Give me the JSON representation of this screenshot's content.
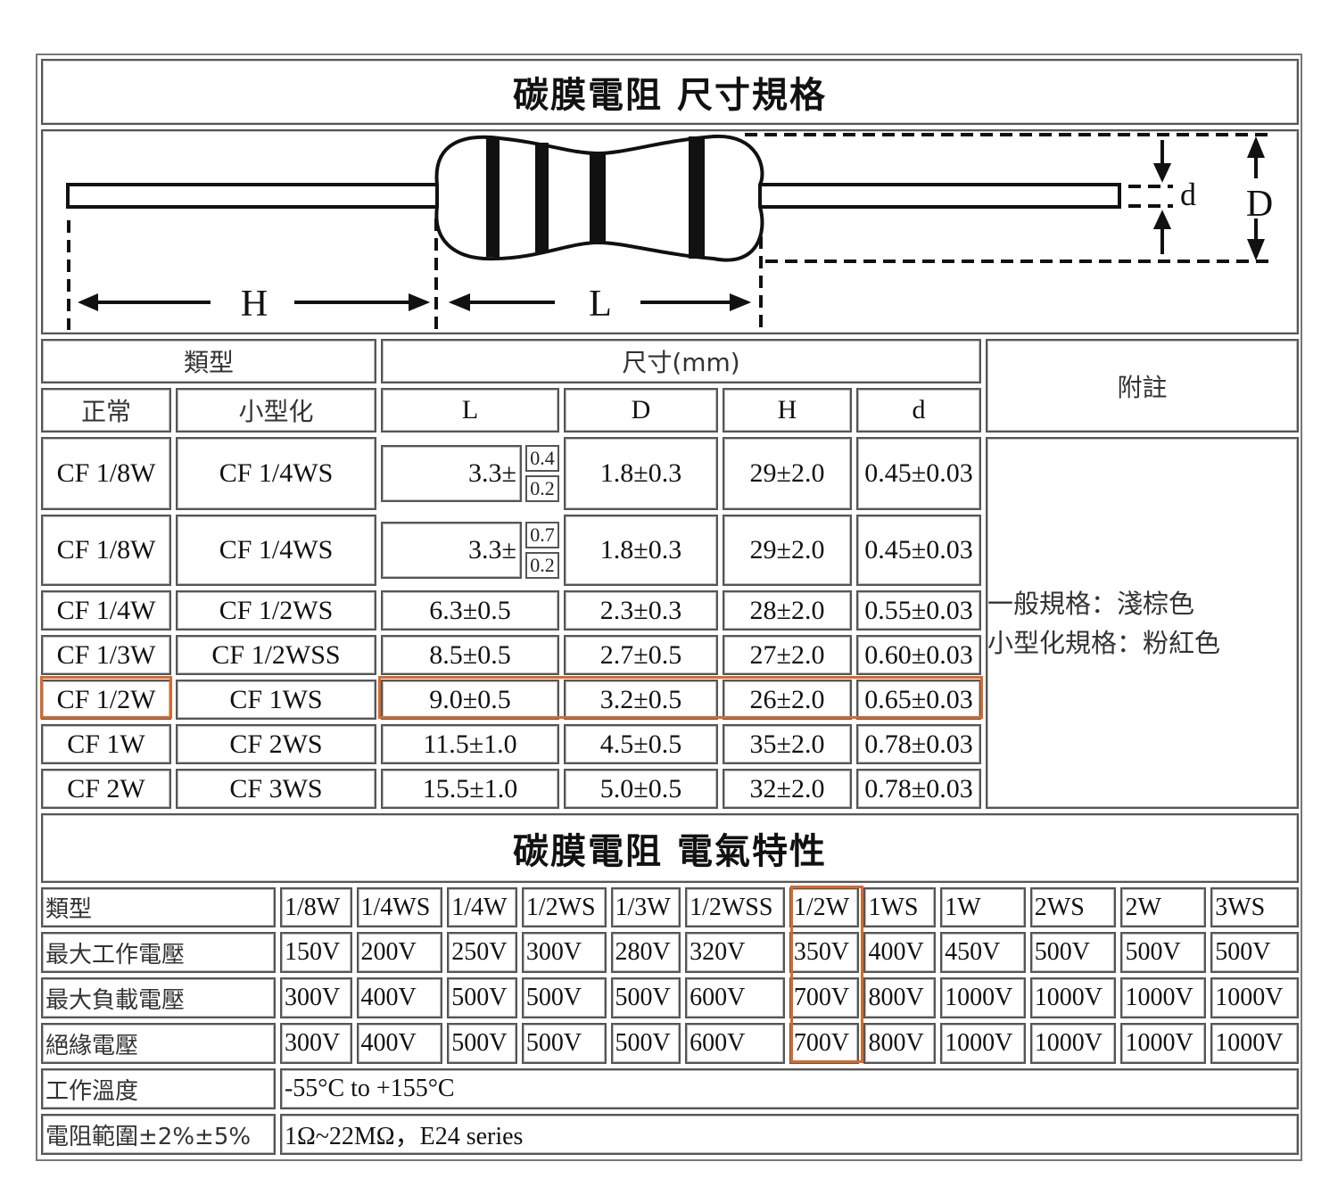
{
  "accent_color": "#d9692a",
  "dimensions": {
    "title": "碳膜電阻 尺寸規格",
    "diagram": {
      "H": "H",
      "L": "L",
      "d": "d",
      "D": "D"
    },
    "headers": {
      "type": "類型",
      "size": "尺寸(mm)",
      "note": "附註",
      "normal": "正常",
      "mini": "小型化",
      "L": "L",
      "D": "D",
      "H": "H",
      "d": "d"
    },
    "rows": [
      {
        "normal": "CF 1/8W",
        "mini": "CF 1/4WS",
        "L": "3.3±",
        "L_tol": [
          "0.4",
          "0.2"
        ],
        "D": "1.8±0.3",
        "H": "29±2.0",
        "d": "0.45±0.03"
      },
      {
        "normal": "CF 1/8W",
        "mini": "CF 1/4WS",
        "L": "3.3±",
        "L_tol": [
          "0.7",
          "0.2"
        ],
        "D": "1.8±0.3",
        "H": "29±2.0",
        "d": "0.45±0.03"
      },
      {
        "normal": "CF 1/4W",
        "mini": "CF 1/2WS",
        "L": "6.3±0.5",
        "D": "2.3±0.3",
        "H": "28±2.0",
        "d": "0.55±0.03"
      },
      {
        "normal": "CF 1/3W",
        "mini": "CF 1/2WSS",
        "L": "8.5±0.5",
        "D": "2.7±0.5",
        "H": "27±2.0",
        "d": "0.60±0.03"
      },
      {
        "normal": "CF 1/2W",
        "mini": "CF 1WS",
        "L": "9.0±0.5",
        "D": "3.2±0.5",
        "H": "26±2.0",
        "d": "0.65±0.03",
        "highlighted": true
      },
      {
        "normal": "CF 1W",
        "mini": "CF 2WS",
        "L": "11.5±1.0",
        "D": "4.5±0.5",
        "H": "35±2.0",
        "d": "0.78±0.03"
      },
      {
        "normal": "CF 2W",
        "mini": "CF 3WS",
        "L": "15.5±1.0",
        "D": "5.0±0.5",
        "H": "32±2.0",
        "d": "0.78±0.03"
      }
    ],
    "notes": [
      "一般規格：淺棕色",
      "小型化規格：粉紅色"
    ]
  },
  "electrical": {
    "title": "碳膜電阻 電氣特性",
    "rows": [
      {
        "label": "類型",
        "values": [
          "1/8W",
          "1/4WS",
          "1/4W",
          "1/2WS",
          "1/3W",
          "1/2WSS",
          "1/2W",
          "1WS",
          "1W",
          "2WS",
          "2W",
          "3WS"
        ]
      },
      {
        "label": "最大工作電壓",
        "values": [
          "150V",
          "200V",
          "250V",
          "300V",
          "280V",
          "320V",
          "350V",
          "400V",
          "450V",
          "500V",
          "500V",
          "500V"
        ]
      },
      {
        "label": "最大負載電壓",
        "values": [
          "300V",
          "400V",
          "500V",
          "500V",
          "500V",
          "600V",
          "700V",
          "800V",
          "1000V",
          "1000V",
          "1000V",
          "1000V"
        ]
      },
      {
        "label": "絕緣電壓",
        "values": [
          "300V",
          "400V",
          "500V",
          "500V",
          "500V",
          "600V",
          "700V",
          "800V",
          "1000V",
          "1000V",
          "1000V",
          "1000V"
        ]
      }
    ],
    "highlighted_column": "1/2W",
    "temperature": {
      "label": "工作溫度",
      "value": "-55°C to +155°C"
    },
    "resistance": {
      "label": "電阻範圍±2%±5%",
      "value": "1Ω~22MΩ，E24 series"
    }
  }
}
